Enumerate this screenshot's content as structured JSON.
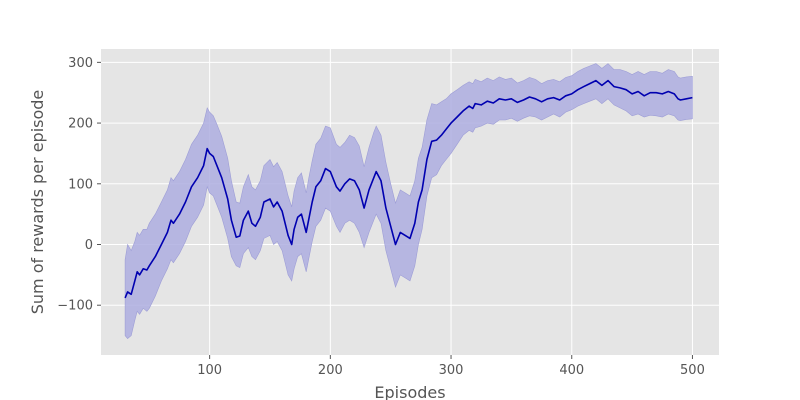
{
  "chart_data": {
    "type": "line",
    "title": "",
    "xlabel": "Episodes",
    "ylabel": "Sum of rewards per episode",
    "xlim": [
      10,
      522
    ],
    "ylim": [
      -182,
      322
    ],
    "xticks": [
      100,
      200,
      300,
      400,
      500
    ],
    "yticks": [
      -100,
      0,
      100,
      200,
      300
    ],
    "xtick_labels": [
      "100",
      "200",
      "300",
      "400",
      "500"
    ],
    "ytick_labels": [
      "−100",
      "0",
      "100",
      "200",
      "300"
    ],
    "grid": true,
    "colors": {
      "background": "#e5e5e5",
      "grid": "#ffffff",
      "line": "#0000b0",
      "band": "#aeaee0",
      "band_edge": "#9d9dd6",
      "text": "#555555"
    },
    "series": [
      {
        "x": [
          30,
          32,
          35,
          38,
          40,
          42,
          45,
          48,
          50,
          55,
          60,
          65,
          68,
          70,
          75,
          80,
          85,
          90,
          95,
          98,
          100,
          103,
          106,
          110,
          115,
          118,
          122,
          125,
          128,
          132,
          135,
          138,
          142,
          145,
          150,
          153,
          156,
          160,
          165,
          168,
          170,
          173,
          176,
          180,
          182,
          185,
          188,
          192,
          196,
          200,
          205,
          208,
          212,
          216,
          220,
          224,
          228,
          232,
          236,
          238,
          242,
          246,
          250,
          254,
          258,
          262,
          266,
          270,
          273,
          276,
          280,
          284,
          288,
          292,
          296,
          300,
          305,
          310,
          315,
          318,
          320,
          325,
          330,
          335,
          340,
          345,
          350,
          355,
          360,
          365,
          370,
          375,
          380,
          385,
          390,
          395,
          400,
          405,
          410,
          415,
          420,
          425,
          430,
          435,
          440,
          445,
          450,
          455,
          460,
          465,
          470,
          475,
          480,
          485,
          488,
          490,
          495,
          500
        ],
        "y": [
          -88,
          -78,
          -82,
          -60,
          -45,
          -50,
          -40,
          -42,
          -35,
          -20,
          0,
          20,
          40,
          35,
          50,
          70,
          95,
          110,
          130,
          158,
          150,
          145,
          130,
          110,
          75,
          40,
          12,
          14,
          40,
          55,
          35,
          30,
          45,
          70,
          75,
          62,
          70,
          55,
          15,
          0,
          25,
          45,
          50,
          20,
          40,
          70,
          95,
          105,
          125,
          120,
          95,
          88,
          100,
          108,
          105,
          90,
          60,
          90,
          110,
          120,
          105,
          60,
          30,
          0,
          20,
          15,
          10,
          35,
          70,
          90,
          140,
          170,
          172,
          180,
          190,
          200,
          210,
          220,
          228,
          224,
          232,
          230,
          236,
          233,
          240,
          238,
          240,
          234,
          238,
          243,
          240,
          235,
          240,
          242,
          238,
          245,
          248,
          255,
          260,
          265,
          270,
          262,
          270,
          260,
          258,
          255,
          248,
          252,
          245,
          250,
          250,
          248,
          252,
          248,
          240,
          238,
          240,
          242
        ],
        "lower": [
          -150,
          -155,
          -150,
          -125,
          -110,
          -115,
          -105,
          -110,
          -105,
          -85,
          -60,
          -40,
          -25,
          -30,
          -15,
          5,
          30,
          45,
          65,
          95,
          85,
          80,
          65,
          45,
          10,
          -20,
          -35,
          -38,
          -15,
          -5,
          -20,
          -25,
          -10,
          10,
          15,
          0,
          5,
          -10,
          -50,
          -60,
          -40,
          -20,
          -15,
          -45,
          -25,
          5,
          30,
          40,
          60,
          55,
          30,
          20,
          35,
          40,
          35,
          20,
          -5,
          20,
          40,
          50,
          35,
          -10,
          -40,
          -70,
          -50,
          -55,
          -60,
          -35,
          0,
          25,
          80,
          110,
          115,
          130,
          140,
          150,
          165,
          180,
          188,
          185,
          192,
          195,
          200,
          198,
          205,
          205,
          208,
          203,
          208,
          212,
          210,
          205,
          210,
          215,
          210,
          218,
          222,
          228,
          232,
          236,
          240,
          232,
          240,
          230,
          225,
          220,
          212,
          215,
          210,
          213,
          212,
          210,
          215,
          212,
          205,
          204,
          206,
          207
        ],
        "upper": [
          -25,
          0,
          -10,
          5,
          20,
          15,
          25,
          25,
          35,
          50,
          70,
          90,
          110,
          105,
          120,
          140,
          165,
          180,
          200,
          225,
          218,
          212,
          198,
          178,
          142,
          105,
          70,
          68,
          95,
          115,
          95,
          90,
          105,
          130,
          140,
          128,
          135,
          120,
          80,
          62,
          88,
          110,
          118,
          85,
          108,
          138,
          165,
          175,
          195,
          192,
          165,
          160,
          168,
          180,
          176,
          162,
          128,
          160,
          185,
          195,
          180,
          135,
          100,
          68,
          90,
          85,
          80,
          105,
          142,
          160,
          205,
          232,
          230,
          235,
          240,
          248,
          255,
          262,
          268,
          265,
          272,
          268,
          274,
          270,
          276,
          272,
          274,
          266,
          270,
          275,
          272,
          265,
          270,
          272,
          268,
          275,
          278,
          285,
          290,
          294,
          298,
          290,
          298,
          288,
          288,
          285,
          280,
          285,
          280,
          285,
          285,
          282,
          288,
          285,
          276,
          274,
          276,
          277
        ]
      }
    ]
  }
}
